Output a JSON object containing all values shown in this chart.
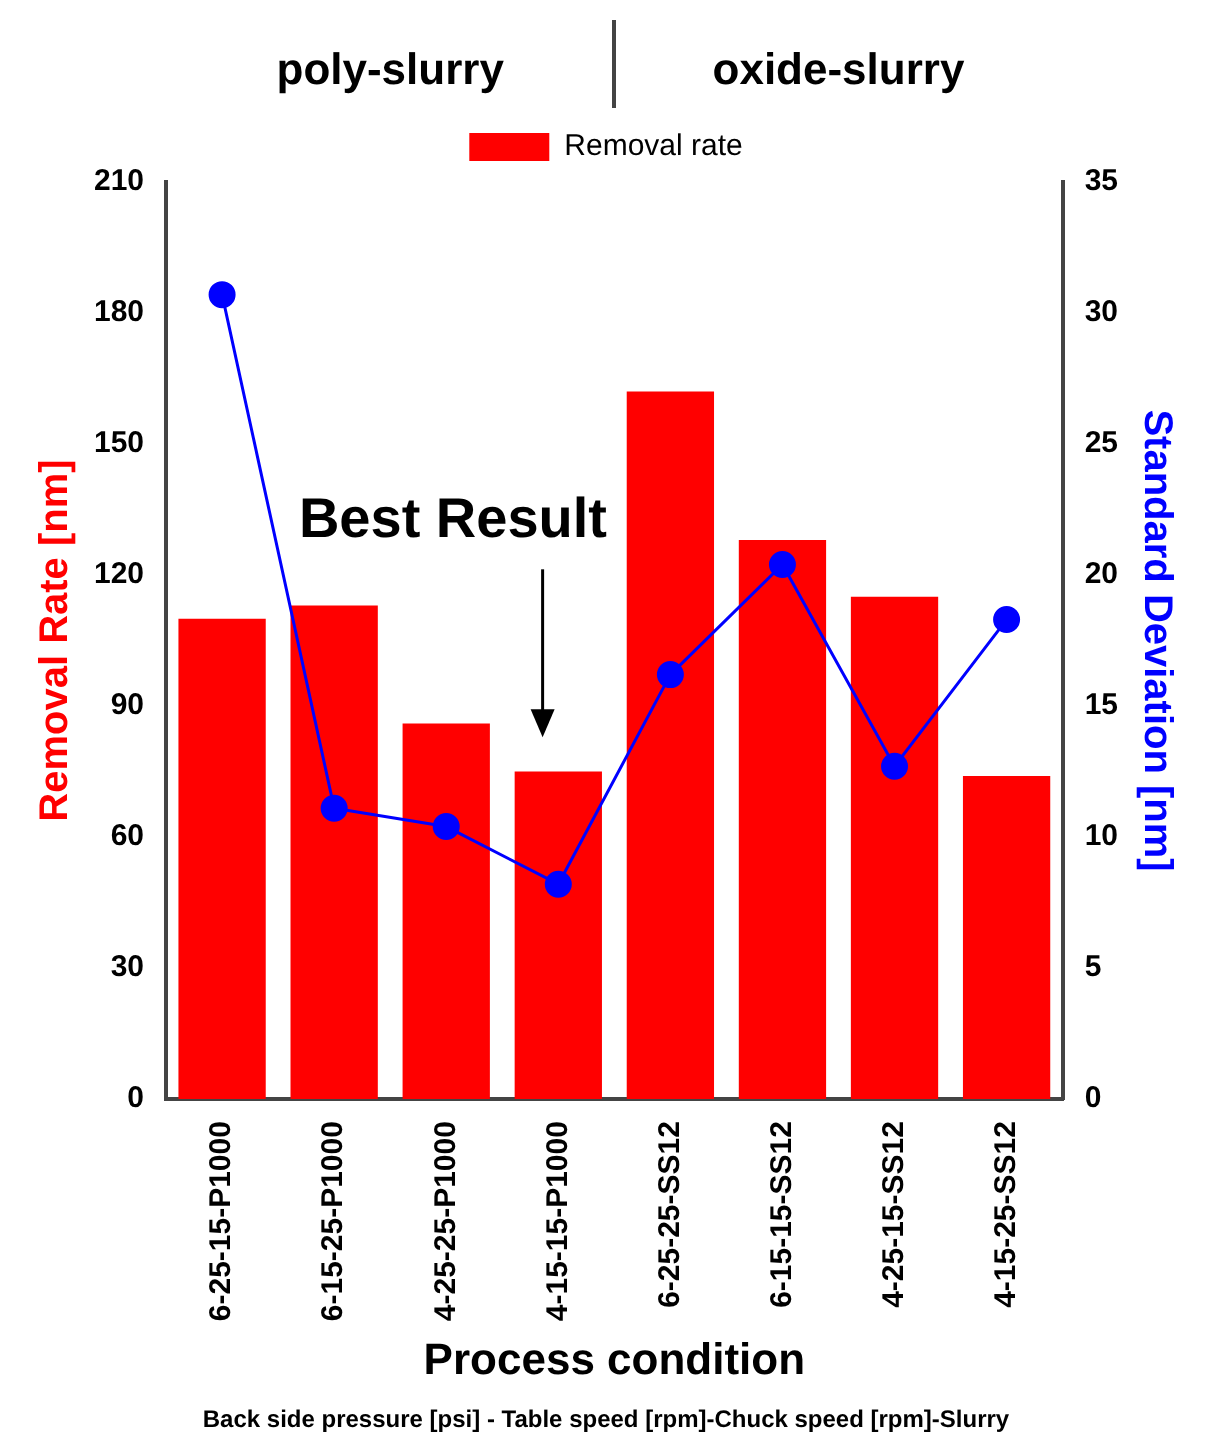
{
  "chart_data": {
    "type": "bar",
    "categories": [
      "6-25-15-P1000",
      "6-15-25-P1000",
      "4-25-25-P1000",
      "4-15-15-P1000",
      "6-25-25-SS12",
      "6-15-15-SS12",
      "4-25-15-SS12",
      "4-15-25-SS12"
    ],
    "series": [
      {
        "name": "Removal rate",
        "color": "#ff0000",
        "values": [
          110,
          113,
          86,
          75,
          162,
          128,
          115,
          74
        ]
      },
      {
        "type": "line",
        "axis": "y2",
        "color": "#0000ff",
        "values": [
          30.7,
          11.1,
          10.4,
          8.2,
          16.2,
          20.4,
          12.7,
          18.3
        ]
      }
    ],
    "xlabel": "Process condition",
    "ylabel": "Removal Rate [nm]",
    "y2label": "Standard Deviation [nm]",
    "ylim": [
      0,
      210
    ],
    "yticks": [
      0,
      30,
      60,
      90,
      120,
      150,
      180,
      210
    ],
    "y2lim": [
      0,
      35
    ],
    "y2ticks": [
      0,
      5,
      10,
      15,
      20,
      25,
      30,
      35
    ],
    "annotations": [
      "poly-slurry",
      "oxide-slurry",
      "Best Result",
      "Back side pressure [psi] - Table speed [rpm]-Chuck speed [rpm]-Slurry"
    ],
    "legend": "top",
    "marker": "circle",
    "line_style": "solid",
    "grid": false
  }
}
